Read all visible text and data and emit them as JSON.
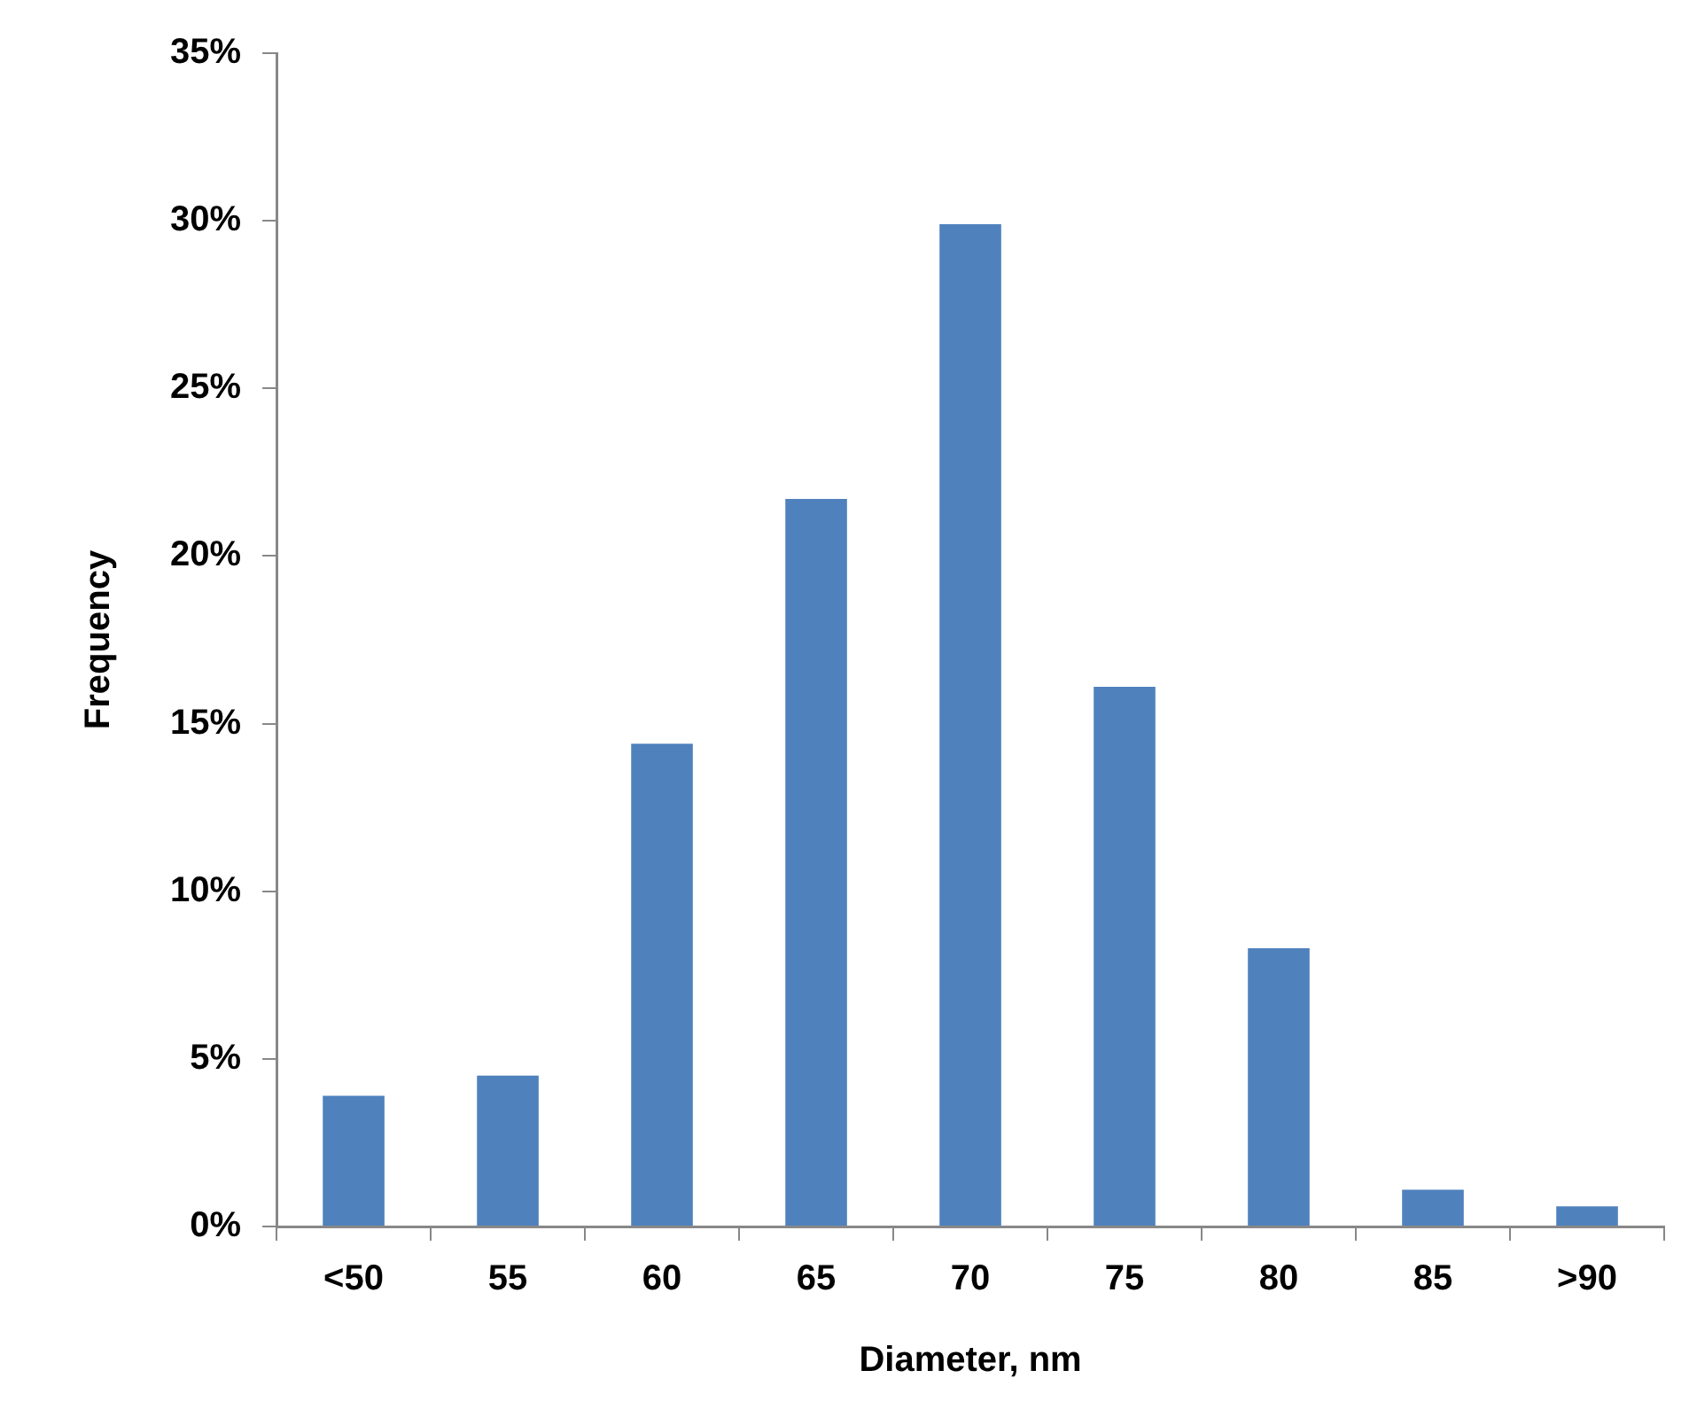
{
  "chart_data": {
    "type": "bar",
    "xlabel": "Diameter, nm",
    "ylabel": "Frequency",
    "categories": [
      "<50",
      "55",
      "60",
      "65",
      "70",
      "75",
      "80",
      "85",
      ">90"
    ],
    "values": [
      3.9,
      4.5,
      14.4,
      21.7,
      29.9,
      16.1,
      8.3,
      1.1,
      0.6
    ],
    "color": "#4f81bd",
    "ylim": [
      0,
      35
    ],
    "yticks": [
      {
        "value": 0,
        "label": "0%"
      },
      {
        "value": 5,
        "label": "5%"
      },
      {
        "value": 10,
        "label": "10%"
      },
      {
        "value": 15,
        "label": "15%"
      },
      {
        "value": 20,
        "label": "20%"
      },
      {
        "value": 25,
        "label": "25%"
      },
      {
        "value": 30,
        "label": "30%"
      },
      {
        "value": 35,
        "label": "35%"
      }
    ],
    "grid": false,
    "legend": false
  }
}
